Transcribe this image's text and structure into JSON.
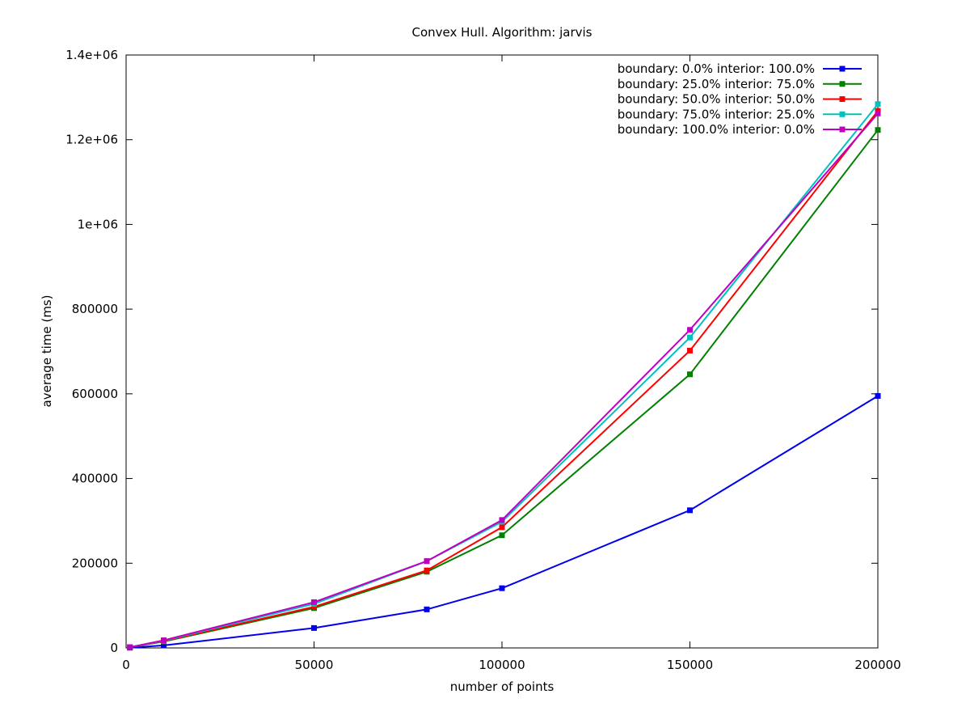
{
  "chart_data": {
    "type": "line",
    "title": "Convex Hull. Algorithm: jarvis",
    "xlabel": "number of points",
    "ylabel": "average time (ms)",
    "xlim": [
      0,
      200000
    ],
    "ylim": [
      0,
      1400000
    ],
    "x_ticks": [
      0,
      50000,
      100000,
      150000,
      200000
    ],
    "x_tick_labels": [
      "0",
      "50000",
      "100000",
      "150000",
      "200000"
    ],
    "y_ticks": [
      0,
      200000,
      400000,
      600000,
      800000,
      1000000,
      1200000,
      1400000
    ],
    "y_tick_labels": [
      "0",
      "200000",
      "400000",
      "600000",
      "800000",
      "1e+06",
      "1.2e+06",
      "1.4e+06"
    ],
    "grid": false,
    "legend_position": "top-right",
    "x": [
      1000,
      10000,
      50000,
      80000,
      100000,
      150000,
      200000
    ],
    "series": [
      {
        "name": "boundary: 0.0% interior: 100.0%",
        "color": "#0000ee",
        "values": [
          600,
          6000,
          47000,
          91000,
          141000,
          325000,
          595000
        ]
      },
      {
        "name": "boundary: 25.0% interior: 75.0%",
        "color": "#008000",
        "values": [
          1500,
          15000,
          94000,
          180000,
          266000,
          646000,
          1223000
        ]
      },
      {
        "name": "boundary: 50.0% interior: 50.0%",
        "color": "#ff0000",
        "values": [
          1700,
          16000,
          97000,
          183000,
          285000,
          702000,
          1268000
        ]
      },
      {
        "name": "boundary: 75.0% interior: 25.0%",
        "color": "#00c0c0",
        "values": [
          1800,
          17000,
          104000,
          205000,
          298000,
          733000,
          1284000
        ]
      },
      {
        "name": "boundary: 100.0% interior: 0.0%",
        "color": "#c000c0",
        "values": [
          1800,
          18000,
          108000,
          205000,
          302000,
          751000,
          1262000
        ]
      }
    ]
  }
}
